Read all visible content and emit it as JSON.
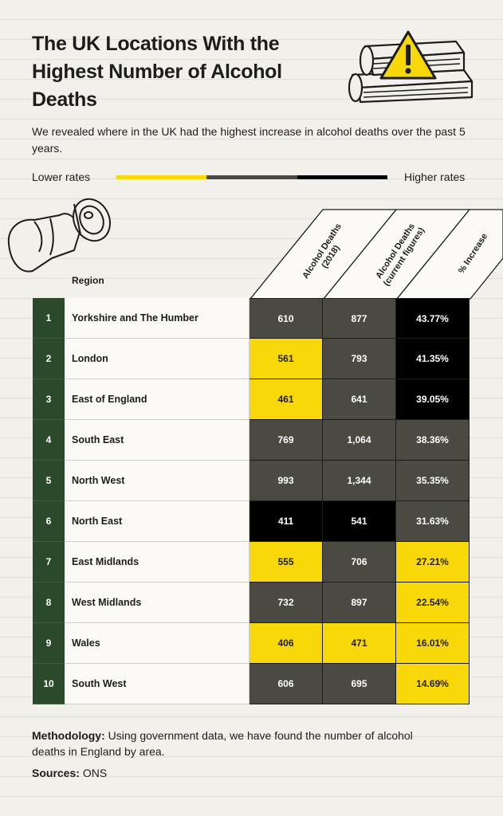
{
  "title": "The UK Locations With the Highest Number of Alcohol Deaths",
  "subtitle": "We revealed where in the UK had the highest increase in alcohol deaths over the past 5 years.",
  "legend": {
    "low_label": "Lower rates",
    "high_label": "Higher rates",
    "colors": [
      "#f9d809",
      "#4a4a42",
      "#000000"
    ]
  },
  "icons": {
    "books": "books-warning-icon",
    "can": "crushed-can-icon"
  },
  "table": {
    "region_header": "Region",
    "col_headers": [
      [
        "Alcohol Deaths",
        "(2018)"
      ],
      [
        "Alcohol Deaths",
        "(current figures)"
      ],
      [
        "% Increase"
      ]
    ]
  },
  "chart_data": {
    "type": "table",
    "columns": [
      "Region",
      "Alcohol Deaths (2018)",
      "Alcohol Deaths (current figures)",
      "% Increase"
    ],
    "rows": [
      {
        "rank": "1",
        "region": "Yorkshire and The Humber",
        "deaths_2018": "610",
        "deaths_current": "877",
        "increase": "43.77%",
        "levels": [
          "grey",
          "grey",
          "black"
        ]
      },
      {
        "rank": "2",
        "region": "London",
        "deaths_2018": "561",
        "deaths_current": "793",
        "increase": "41.35%",
        "levels": [
          "yellow",
          "grey",
          "black"
        ]
      },
      {
        "rank": "3",
        "region": "East of England",
        "deaths_2018": "461",
        "deaths_current": "641",
        "increase": "39.05%",
        "levels": [
          "yellow",
          "grey",
          "black"
        ]
      },
      {
        "rank": "4",
        "region": "South East",
        "deaths_2018": "769",
        "deaths_current": "1,064",
        "increase": "38.36%",
        "levels": [
          "grey",
          "grey",
          "grey"
        ]
      },
      {
        "rank": "5",
        "region": "North West",
        "deaths_2018": "993",
        "deaths_current": "1,344",
        "increase": "35.35%",
        "levels": [
          "grey",
          "grey",
          "grey"
        ]
      },
      {
        "rank": "6",
        "region": "North East",
        "deaths_2018": "411",
        "deaths_current": "541",
        "increase": "31.63%",
        "levels": [
          "black",
          "black",
          "grey"
        ]
      },
      {
        "rank": "7",
        "region": "East Midlands",
        "deaths_2018": "555",
        "deaths_current": "706",
        "increase": "27.21%",
        "levels": [
          "yellow",
          "grey",
          "yellow"
        ]
      },
      {
        "rank": "8",
        "region": "West Midlands",
        "deaths_2018": "732",
        "deaths_current": "897",
        "increase": "22.54%",
        "levels": [
          "grey",
          "grey",
          "yellow"
        ]
      },
      {
        "rank": "9",
        "region": "Wales",
        "deaths_2018": "406",
        "deaths_current": "471",
        "increase": "16.01%",
        "levels": [
          "yellow",
          "yellow",
          "yellow"
        ]
      },
      {
        "rank": "10",
        "region": "South West",
        "deaths_2018": "606",
        "deaths_current": "695",
        "increase": "14.69%",
        "levels": [
          "grey",
          "grey",
          "yellow"
        ]
      }
    ]
  },
  "footer": {
    "methodology_label": "Methodology:",
    "methodology_text": "Using government data, we have found the number of alcohol deaths in England by area.",
    "sources_label": "Sources:",
    "sources_text": "ONS"
  }
}
